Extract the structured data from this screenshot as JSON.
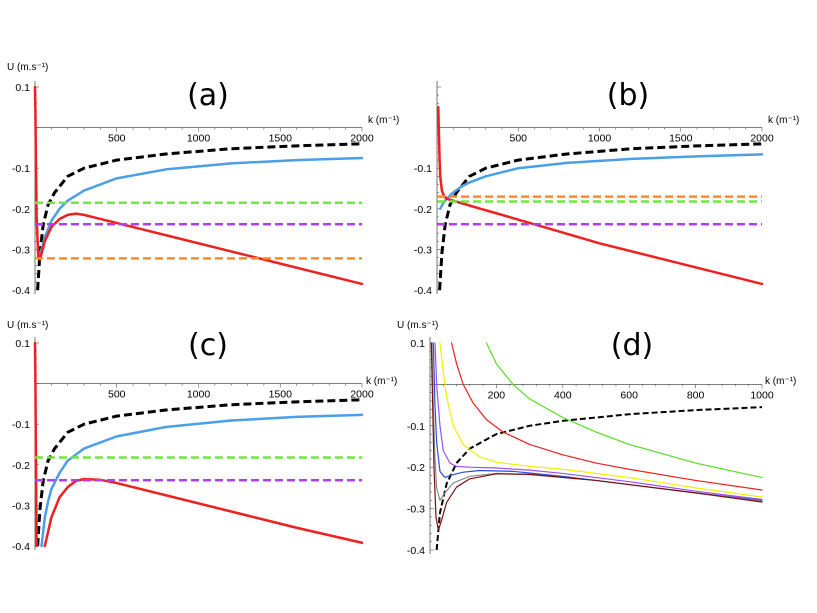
{
  "chart_data": [
    {
      "type": "line",
      "panel_label": "(a)",
      "xlabel": "k (m⁻¹)",
      "ylabel": "U (m.s⁻¹)",
      "xlim": [
        0,
        2000
      ],
      "ylim": [
        -0.4,
        0.1
      ],
      "xticks": [
        500,
        1000,
        1500,
        2000
      ],
      "yticks": [
        0.1,
        -0.1,
        -0.2,
        -0.3,
        -0.4
      ],
      "xtick_labels": [
        "500",
        "1000",
        "1500",
        "2000"
      ],
      "ytick_labels": [
        "0.1",
        "-0.1",
        "-0.2",
        "-0.3",
        "-0.4"
      ],
      "series": [
        {
          "name": "black dashed",
          "color": "#000000",
          "style": "dashed",
          "width": 3,
          "x": [
            16,
            30,
            50,
            80,
            120,
            200,
            300,
            500,
            800,
            1200,
            1600,
            2000
          ],
          "y": [
            -0.4,
            -0.31,
            -0.24,
            -0.19,
            -0.16,
            -0.12,
            -0.1,
            -0.08,
            -0.065,
            -0.052,
            -0.045,
            -0.04
          ]
        },
        {
          "name": "blue",
          "color": "#4a9fe8",
          "style": "solid",
          "width": 2.5,
          "x": [
            20,
            40,
            60,
            100,
            150,
            200,
            300,
            500,
            800,
            1200,
            1600,
            2000
          ],
          "y": [
            -0.32,
            -0.3,
            -0.27,
            -0.23,
            -0.2,
            -0.18,
            -0.155,
            -0.125,
            -0.103,
            -0.088,
            -0.08,
            -0.075
          ]
        },
        {
          "name": "red",
          "color": "#ee2020",
          "style": "solid",
          "width": 2.5,
          "x": [
            0,
            2,
            4,
            6,
            10,
            20,
            30,
            60,
            100,
            150,
            200,
            250,
            300,
            400,
            600,
            900,
            1200,
            1500,
            2000
          ],
          "y": [
            0.1,
            0.05,
            -0.02,
            -0.1,
            -0.22,
            -0.32,
            -0.325,
            -0.28,
            -0.245,
            -0.225,
            -0.215,
            -0.212,
            -0.215,
            -0.225,
            -0.245,
            -0.275,
            -0.305,
            -0.335,
            -0.385
          ]
        },
        {
          "name": "green dashed",
          "color": "#6ee83c",
          "style": "dashed",
          "width": 2.5,
          "x": [
            0,
            2000
          ],
          "y": [
            -0.185,
            -0.185
          ]
        },
        {
          "name": "purple dashed",
          "color": "#b040e8",
          "style": "dashed",
          "width": 2.5,
          "x": [
            0,
            2000
          ],
          "y": [
            -0.238,
            -0.238
          ]
        },
        {
          "name": "orange dashed",
          "color": "#ff8c2a",
          "style": "dashed",
          "width": 2.5,
          "x": [
            0,
            2000
          ],
          "y": [
            -0.322,
            -0.322
          ]
        }
      ]
    },
    {
      "type": "line",
      "panel_label": "(b)",
      "xlabel": "k (m⁻¹)",
      "ylabel": "",
      "xlim": [
        0,
        2000
      ],
      "ylim": [
        -0.4,
        0.1
      ],
      "xticks": [
        500,
        1000,
        1500,
        2000
      ],
      "yticks": [
        -0.1,
        -0.2,
        -0.3,
        -0.4
      ],
      "xtick_labels": [
        "500",
        "1000",
        "1500",
        "2000"
      ],
      "ytick_labels": [
        "-0.1",
        "-0.2",
        "-0.3",
        "-0.4"
      ],
      "series": [
        {
          "name": "black dashed",
          "color": "#000000",
          "style": "dashed",
          "width": 3,
          "x": [
            16,
            30,
            50,
            80,
            120,
            200,
            300,
            500,
            800,
            1200,
            1600,
            2000
          ],
          "y": [
            -0.4,
            -0.31,
            -0.24,
            -0.19,
            -0.16,
            -0.12,
            -0.1,
            -0.08,
            -0.065,
            -0.052,
            -0.045,
            -0.04
          ]
        },
        {
          "name": "blue",
          "color": "#4a9fe8",
          "style": "solid",
          "width": 2.5,
          "x": [
            20,
            40,
            60,
            100,
            150,
            200,
            300,
            500,
            800,
            1200,
            1600,
            2000
          ],
          "y": [
            -0.2,
            -0.185,
            -0.175,
            -0.16,
            -0.145,
            -0.135,
            -0.12,
            -0.1,
            -0.087,
            -0.077,
            -0.071,
            -0.066
          ]
        },
        {
          "name": "red",
          "color": "#ee2020",
          "style": "solid",
          "width": 2.5,
          "x": [
            8,
            12,
            16,
            20,
            30,
            45,
            60,
            80,
            100,
            150,
            250,
            400,
            700,
            1000,
            1400,
            2000
          ],
          "y": [
            0.05,
            -0.02,
            -0.08,
            -0.12,
            -0.155,
            -0.17,
            -0.175,
            -0.178,
            -0.18,
            -0.186,
            -0.198,
            -0.215,
            -0.25,
            -0.285,
            -0.325,
            -0.385
          ]
        },
        {
          "name": "orange dashed",
          "color": "#ff8c2a",
          "style": "dashed",
          "width": 2.5,
          "x": [
            0,
            2000
          ],
          "y": [
            -0.17,
            -0.17
          ]
        },
        {
          "name": "green dashed",
          "color": "#6ee83c",
          "style": "dashed",
          "width": 2.5,
          "x": [
            0,
            2000
          ],
          "y": [
            -0.182,
            -0.182
          ]
        },
        {
          "name": "purple dashed",
          "color": "#b040e8",
          "style": "dashed",
          "width": 2.5,
          "x": [
            0,
            2000
          ],
          "y": [
            -0.238,
            -0.238
          ]
        }
      ]
    },
    {
      "type": "line",
      "panel_label": "(c)",
      "xlabel": "k (m⁻¹)",
      "ylabel": "U (m.s⁻¹)",
      "xlim": [
        0,
        2000
      ],
      "ylim": [
        -0.4,
        0.1
      ],
      "xticks": [
        500,
        1000,
        1500,
        2000
      ],
      "yticks": [
        0.1,
        -0.1,
        -0.2,
        -0.3,
        -0.4
      ],
      "xtick_labels": [
        "500",
        "1000",
        "1500",
        "2000"
      ],
      "ytick_labels": [
        "0.1",
        "-0.1",
        "-0.2",
        "-0.3",
        "-0.4"
      ],
      "series": [
        {
          "name": "black dashed",
          "color": "#000000",
          "style": "dashed",
          "width": 3,
          "x": [
            16,
            30,
            50,
            80,
            120,
            200,
            300,
            500,
            800,
            1200,
            1600,
            2000
          ],
          "y": [
            -0.4,
            -0.31,
            -0.24,
            -0.19,
            -0.16,
            -0.12,
            -0.1,
            -0.08,
            -0.065,
            -0.052,
            -0.045,
            -0.04
          ]
        },
        {
          "name": "blue",
          "color": "#4a9fe8",
          "style": "solid",
          "width": 2.5,
          "x": [
            40,
            60,
            80,
            100,
            150,
            200,
            300,
            500,
            800,
            1200,
            1600,
            2000
          ],
          "y": [
            -0.4,
            -0.33,
            -0.29,
            -0.26,
            -0.22,
            -0.19,
            -0.16,
            -0.13,
            -0.107,
            -0.091,
            -0.082,
            -0.077
          ]
        },
        {
          "name": "red",
          "color": "#ee2020",
          "style": "solid",
          "width": 2.5,
          "x": [
            0,
            2,
            4,
            6,
            8,
            10
          ],
          "y": [
            0.1,
            0.03,
            -0.08,
            -0.2,
            -0.3,
            -0.4
          ]
        },
        {
          "name": "red (right branch)",
          "color": "#ee2020",
          "style": "solid",
          "width": 2.5,
          "x": [
            60,
            100,
            150,
            200,
            250,
            300,
            400,
            500,
            800,
            1200,
            1600,
            2000
          ],
          "y": [
            -0.4,
            -0.33,
            -0.28,
            -0.255,
            -0.24,
            -0.235,
            -0.237,
            -0.245,
            -0.275,
            -0.315,
            -0.355,
            -0.392
          ]
        },
        {
          "name": "green dashed",
          "color": "#6ee83c",
          "style": "dashed",
          "width": 2.5,
          "x": [
            0,
            2000
          ],
          "y": [
            -0.182,
            -0.182
          ]
        },
        {
          "name": "purple dashed",
          "color": "#b040e8",
          "style": "dashed",
          "width": 2.5,
          "x": [
            0,
            2000
          ],
          "y": [
            -0.238,
            -0.238
          ]
        }
      ]
    },
    {
      "type": "line",
      "panel_label": "(d)",
      "xlabel": "k (m⁻¹)",
      "ylabel": "U (m.s⁻¹)",
      "xlim": [
        0,
        1000
      ],
      "ylim": [
        -0.4,
        0.1
      ],
      "xticks": [
        200,
        400,
        600,
        800,
        1000
      ],
      "yticks": [
        0.1,
        -0.1,
        -0.2,
        -0.3,
        -0.4
      ],
      "xtick_labels": [
        "200",
        "400",
        "600",
        "800",
        "1000"
      ],
      "ytick_labels": [
        "0.1",
        "-0.1",
        "-0.2",
        "-0.3",
        "-0.4"
      ],
      "series": [
        {
          "name": "black dashed",
          "color": "#000000",
          "style": "dashed",
          "width": 2,
          "x": [
            20,
            30,
            50,
            80,
            120,
            200,
            300,
            400,
            500,
            600,
            800,
            1000
          ],
          "y": [
            -0.4,
            -0.31,
            -0.24,
            -0.19,
            -0.155,
            -0.12,
            -0.1,
            -0.088,
            -0.08,
            -0.072,
            -0.062,
            -0.055
          ]
        },
        {
          "name": "green",
          "color": "#55dd22",
          "style": "solid",
          "width": 1.2,
          "x": [
            170,
            200,
            250,
            300,
            400,
            500,
            600,
            800,
            1000
          ],
          "y": [
            0.1,
            0.05,
            0.0,
            -0.035,
            -0.08,
            -0.115,
            -0.145,
            -0.19,
            -0.225
          ]
        },
        {
          "name": "red",
          "color": "#ee2020",
          "style": "solid",
          "width": 1.2,
          "x": [
            65,
            80,
            100,
            130,
            170,
            220,
            300,
            400,
            500,
            600,
            800,
            1000
          ],
          "y": [
            0.1,
            0.05,
            0.0,
            -0.045,
            -0.085,
            -0.115,
            -0.145,
            -0.17,
            -0.19,
            -0.205,
            -0.232,
            -0.255
          ]
        },
        {
          "name": "yellow",
          "color": "#f0f000",
          "style": "solid",
          "width": 1.2,
          "x": [
            30,
            40,
            50,
            70,
            100,
            150,
            200,
            300,
            400,
            600,
            800,
            1000
          ],
          "y": [
            0.1,
            0.03,
            -0.03,
            -0.1,
            -0.145,
            -0.175,
            -0.188,
            -0.198,
            -0.205,
            -0.225,
            -0.25,
            -0.272
          ]
        },
        {
          "name": "purple",
          "color": "#a050f0",
          "style": "solid",
          "width": 1.2,
          "x": [
            15,
            20,
            30,
            40,
            60,
            80,
            120,
            200,
            300,
            400,
            600,
            800,
            1000
          ],
          "y": [
            0.1,
            0.0,
            -0.1,
            -0.16,
            -0.19,
            -0.198,
            -0.2,
            -0.202,
            -0.207,
            -0.215,
            -0.235,
            -0.258,
            -0.278
          ]
        },
        {
          "name": "blue",
          "color": "#2850e0",
          "style": "solid",
          "width": 1.2,
          "x": [
            10,
            15,
            20,
            30,
            45,
            60,
            100,
            150,
            250,
            400,
            600,
            800,
            1000
          ],
          "y": [
            0.1,
            -0.05,
            -0.14,
            -0.21,
            -0.225,
            -0.22,
            -0.212,
            -0.208,
            -0.21,
            -0.222,
            -0.242,
            -0.262,
            -0.28
          ]
        },
        {
          "name": "gray",
          "color": "#8c8c8c",
          "style": "solid",
          "width": 1.2,
          "x": [
            6,
            10,
            15,
            20,
            30,
            45,
            70,
            120,
            200,
            300,
            500,
            800,
            1000
          ],
          "y": [
            0.1,
            -0.05,
            -0.18,
            -0.25,
            -0.28,
            -0.262,
            -0.238,
            -0.222,
            -0.215,
            -0.218,
            -0.232,
            -0.262,
            -0.282
          ]
        },
        {
          "name": "dark red",
          "color": "#7a1010",
          "style": "solid",
          "width": 1.2,
          "x": [
            4,
            8,
            12,
            18,
            25,
            35,
            50,
            80,
            120,
            200,
            300,
            500,
            800,
            1000
          ],
          "y": [
            0.1,
            -0.05,
            -0.2,
            -0.32,
            -0.352,
            -0.328,
            -0.285,
            -0.248,
            -0.228,
            -0.216,
            -0.217,
            -0.232,
            -0.262,
            -0.284
          ]
        }
      ]
    }
  ]
}
